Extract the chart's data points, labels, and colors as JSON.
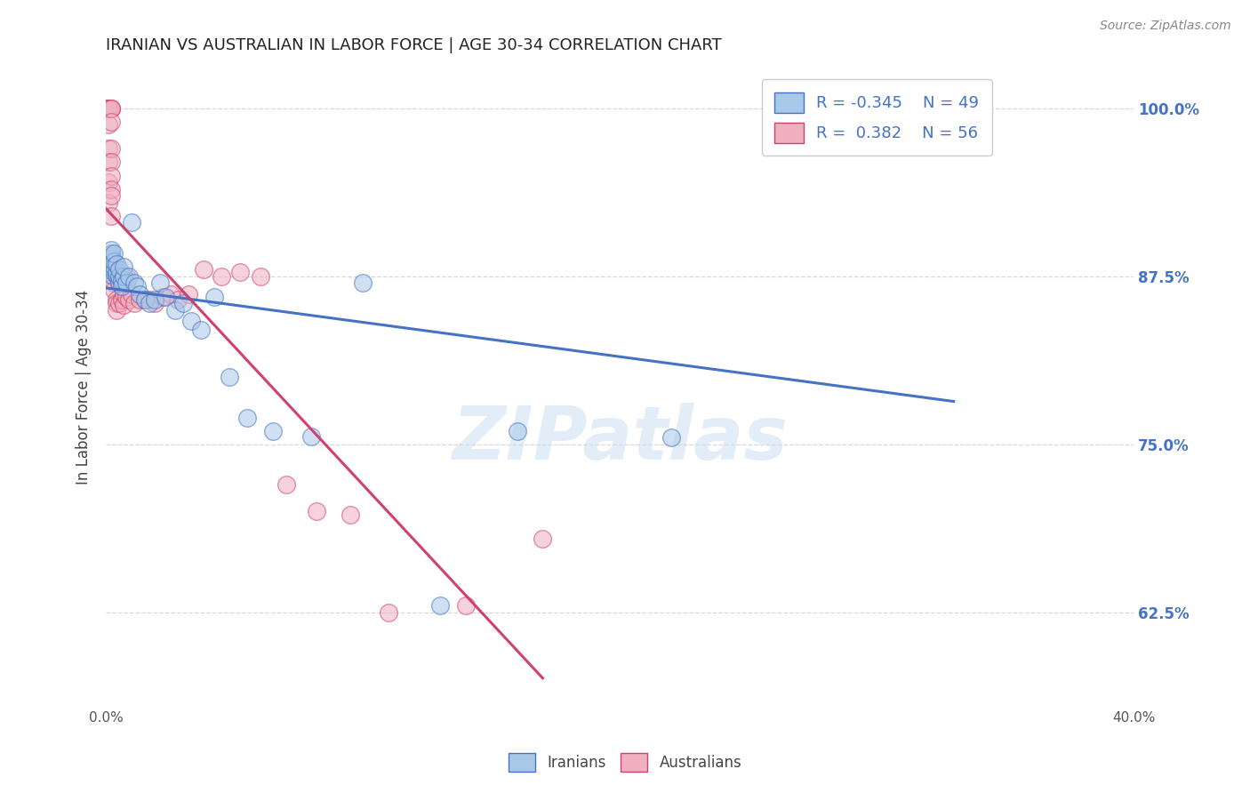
{
  "title": "IRANIAN VS AUSTRALIAN IN LABOR FORCE | AGE 30-34 CORRELATION CHART",
  "source": "Source: ZipAtlas.com",
  "ylabel": "In Labor Force | Age 30-34",
  "watermark": "ZIPatlas",
  "xlim": [
    0.0,
    0.4
  ],
  "ylim": [
    0.555,
    1.03
  ],
  "ytick_labels_right": [
    "62.5%",
    "75.0%",
    "87.5%",
    "100.0%"
  ],
  "ytick_vals_right": [
    0.625,
    0.75,
    0.875,
    1.0
  ],
  "legend_blue_r": "R = -0.345",
  "legend_blue_n": "N = 49",
  "legend_pink_r": "R =  0.382",
  "legend_pink_n": "N = 56",
  "blue_color": "#A8C8E8",
  "pink_color": "#F0B0C0",
  "blue_line_color": "#4472C4",
  "pink_line_color": "#D04070",
  "background_color": "#ffffff",
  "grid_color": "#D8D8D8",
  "title_color": "#222222",
  "axis_label_color": "#444444",
  "right_tick_color": "#4472C4",
  "iranians_x": [
    0.001,
    0.001,
    0.002,
    0.002,
    0.002,
    0.002,
    0.002,
    0.002,
    0.002,
    0.002,
    0.003,
    0.003,
    0.003,
    0.003,
    0.004,
    0.004,
    0.004,
    0.005,
    0.005,
    0.005,
    0.006,
    0.006,
    0.007,
    0.007,
    0.008,
    0.009,
    0.01,
    0.011,
    0.012,
    0.013,
    0.015,
    0.017,
    0.019,
    0.021,
    0.023,
    0.027,
    0.03,
    0.033,
    0.037,
    0.042,
    0.048,
    0.055,
    0.065,
    0.08,
    0.1,
    0.13,
    0.16,
    0.22,
    0.31
  ],
  "iranians_y": [
    0.88,
    0.878,
    0.89,
    0.888,
    0.876,
    0.882,
    0.884,
    0.886,
    0.892,
    0.895,
    0.878,
    0.882,
    0.886,
    0.892,
    0.876,
    0.878,
    0.884,
    0.87,
    0.875,
    0.88,
    0.872,
    0.868,
    0.875,
    0.882,
    0.87,
    0.875,
    0.915,
    0.87,
    0.868,
    0.862,
    0.858,
    0.855,
    0.858,
    0.87,
    0.86,
    0.85,
    0.855,
    0.842,
    0.835,
    0.86,
    0.8,
    0.77,
    0.76,
    0.756,
    0.87,
    0.63,
    0.76,
    0.755,
    1.0
  ],
  "australians_x": [
    0.001,
    0.001,
    0.001,
    0.001,
    0.001,
    0.001,
    0.001,
    0.001,
    0.001,
    0.001,
    0.002,
    0.002,
    0.002,
    0.002,
    0.002,
    0.002,
    0.002,
    0.002,
    0.002,
    0.002,
    0.003,
    0.003,
    0.003,
    0.003,
    0.004,
    0.004,
    0.004,
    0.005,
    0.005,
    0.006,
    0.006,
    0.007,
    0.007,
    0.008,
    0.008,
    0.009,
    0.01,
    0.011,
    0.013,
    0.015,
    0.017,
    0.019,
    0.022,
    0.025,
    0.028,
    0.032,
    0.038,
    0.045,
    0.052,
    0.06,
    0.07,
    0.082,
    0.095,
    0.11,
    0.14,
    0.17
  ],
  "australians_y": [
    1.0,
    1.0,
    1.0,
    1.0,
    1.0,
    0.988,
    0.97,
    0.96,
    0.945,
    0.93,
    1.0,
    1.0,
    1.0,
    0.99,
    0.97,
    0.96,
    0.95,
    0.94,
    0.935,
    0.92,
    0.88,
    0.875,
    0.87,
    0.865,
    0.858,
    0.855,
    0.85,
    0.87,
    0.855,
    0.87,
    0.858,
    0.862,
    0.854,
    0.875,
    0.86,
    0.858,
    0.862,
    0.855,
    0.858,
    0.858,
    0.858,
    0.855,
    0.86,
    0.862,
    0.858,
    0.862,
    0.88,
    0.875,
    0.878,
    0.875,
    0.72,
    0.7,
    0.698,
    0.625,
    0.63,
    0.68
  ]
}
